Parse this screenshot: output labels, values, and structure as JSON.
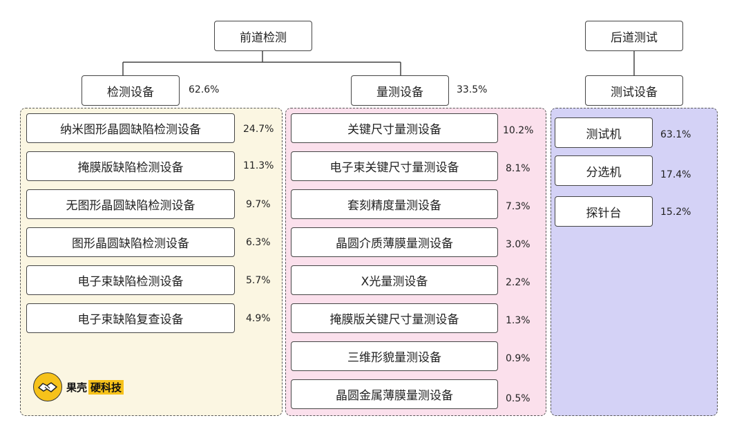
{
  "top": {
    "front": "前道检测",
    "back": "后道测试"
  },
  "groups": {
    "inspection": {
      "label": "检测设备",
      "pct": "62.6%"
    },
    "metrology": {
      "label": "量测设备",
      "pct": "33.5%"
    },
    "test": {
      "label": "测试设备"
    }
  },
  "inspection_items": [
    {
      "label": "纳米图形晶圆缺陷检测设备",
      "pct": "24.7%"
    },
    {
      "label": "掩膜版缺陷检测设备",
      "pct": "11.3%"
    },
    {
      "label": "无图形晶圆缺陷检测设备",
      "pct": "9.7%"
    },
    {
      "label": "图形晶圆缺陷检测设备",
      "pct": "6.3%"
    },
    {
      "label": "电子束缺陷检测设备",
      "pct": "5.7%"
    },
    {
      "label": "电子束缺陷复查设备",
      "pct": "4.9%"
    }
  ],
  "metrology_items": [
    {
      "label": "关键尺寸量测设备",
      "pct": "10.2%"
    },
    {
      "label": "电子束关键尺寸量测设备",
      "pct": "8.1%"
    },
    {
      "label": "套刻精度量测设备",
      "pct": "7.3%"
    },
    {
      "label": "晶圆介质薄膜量测设备",
      "pct": "3.0%"
    },
    {
      "label": "X光量测设备",
      "pct": "2.2%"
    },
    {
      "label": "掩膜版关键尺寸量测设备",
      "pct": "1.3%"
    },
    {
      "label": "三维形貌量测设备",
      "pct": "0.9%"
    },
    {
      "label": "晶圆金属薄膜量测设备",
      "pct": "0.5%"
    }
  ],
  "test_items": [
    {
      "label": "测试机",
      "pct": "63.1%"
    },
    {
      "label": "分选机",
      "pct": "17.4%"
    },
    {
      "label": "探针台",
      "pct": "15.2%"
    }
  ],
  "logo": {
    "name": "果壳",
    "highlight": "硬科技",
    "icon": "handshake-icon"
  },
  "colors": {
    "inspection_panel": "#fbf6e2",
    "metrology_panel": "#fbe0ec",
    "test_panel": "#d4d2f6",
    "logo_yellow": "#f6c21a"
  }
}
